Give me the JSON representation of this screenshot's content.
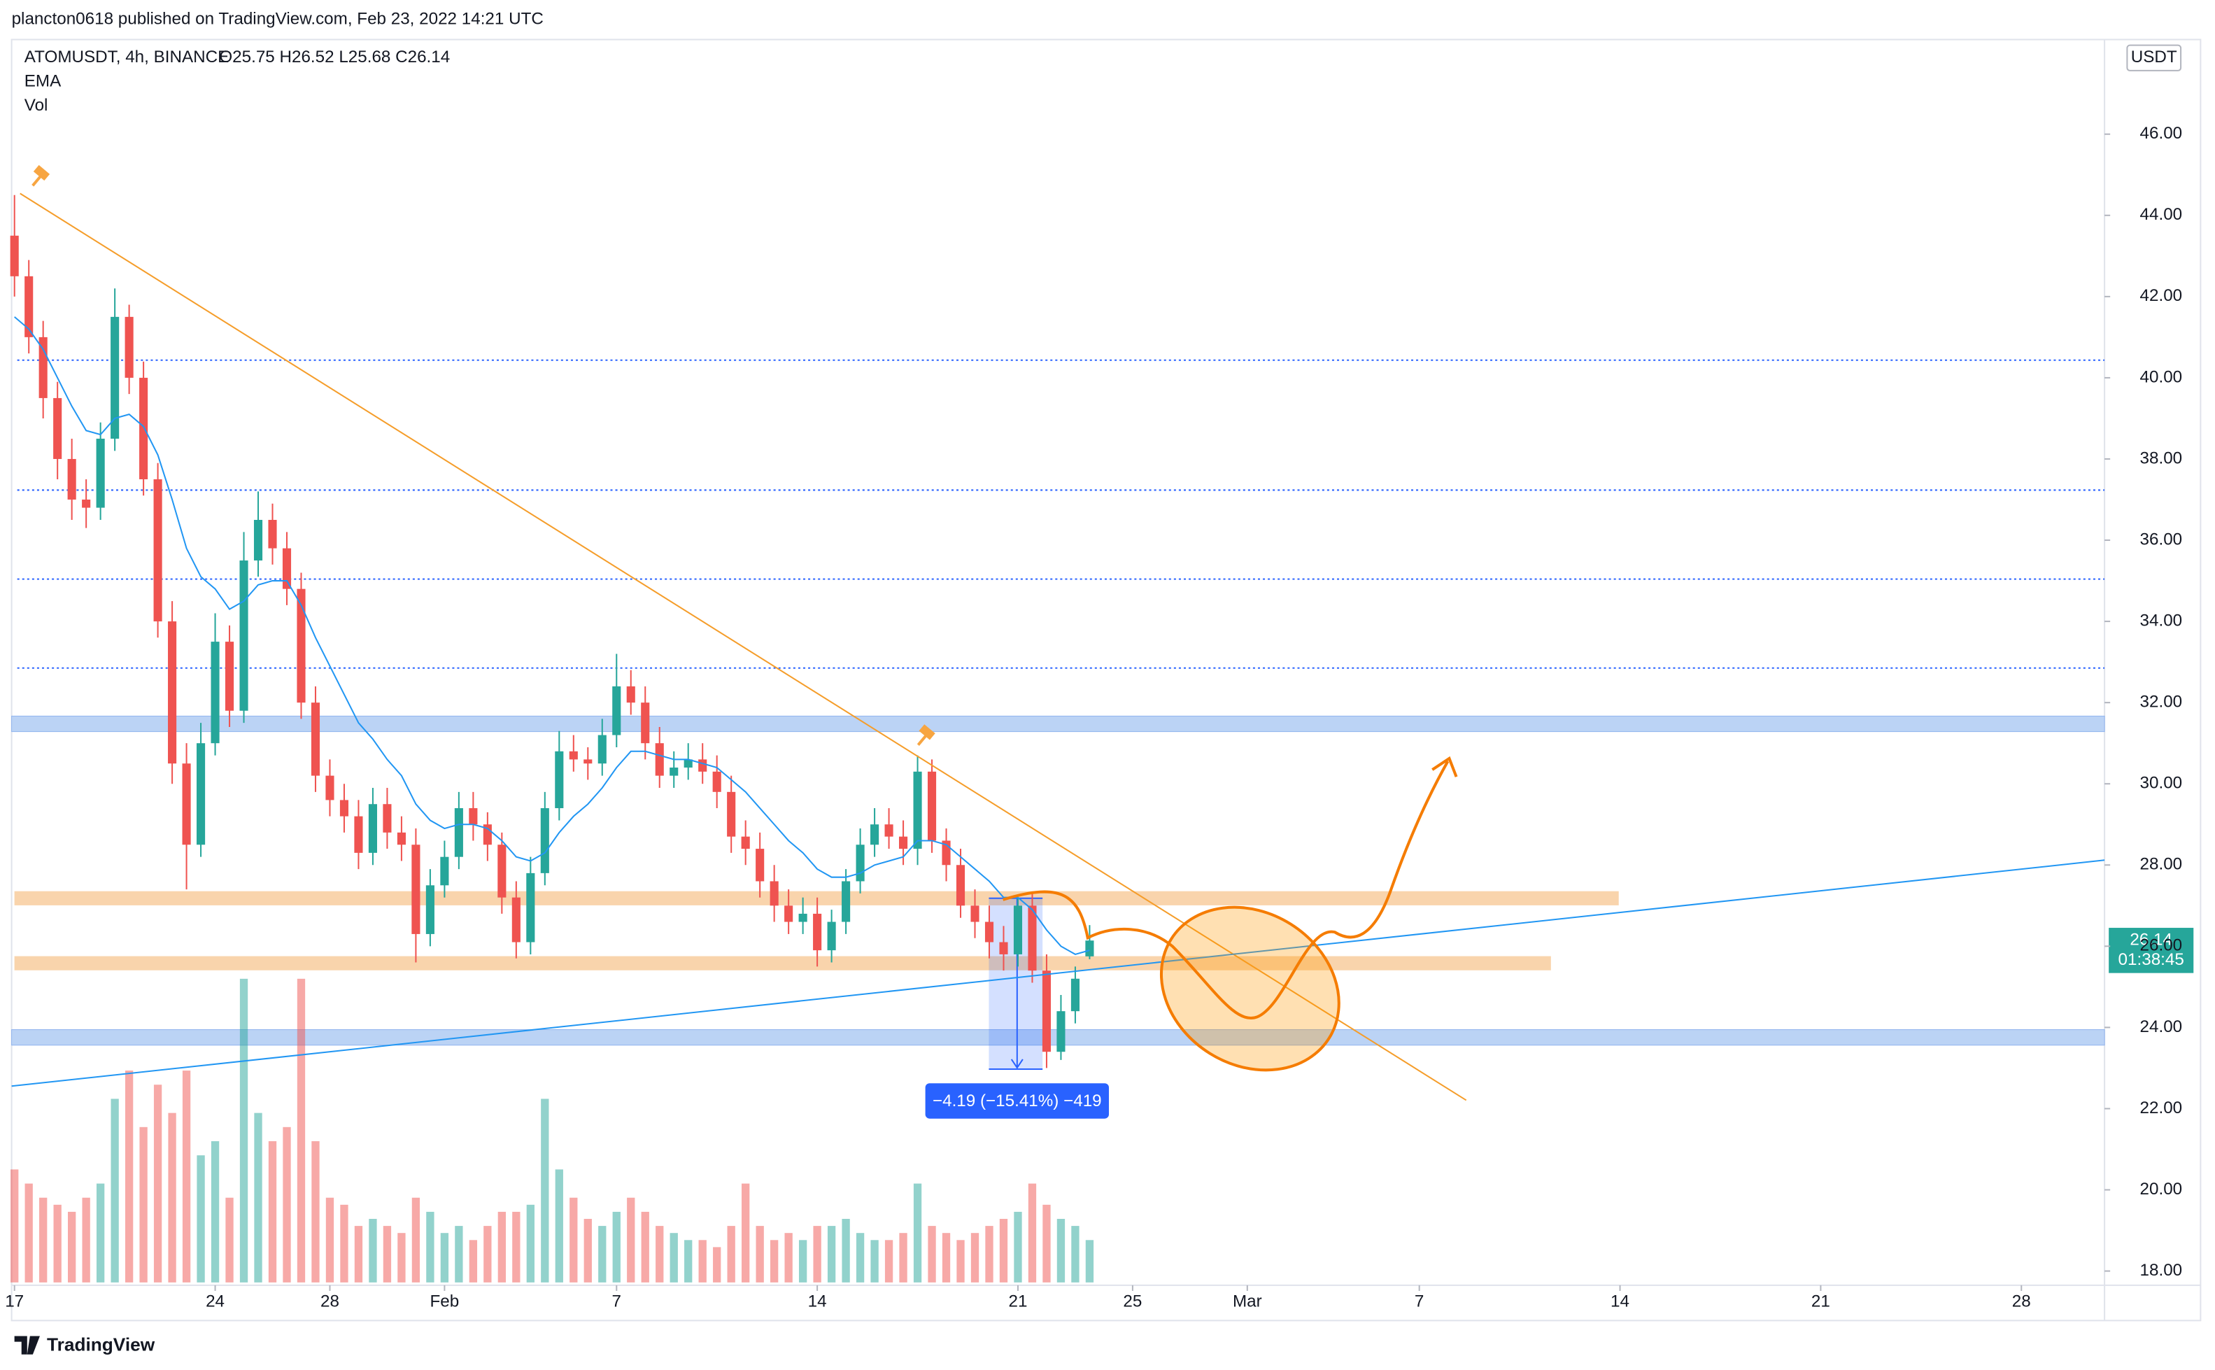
{
  "header": {
    "publisher": "plancton0618 published on TradingView.com, Feb 23, 2022 14:21 UTC"
  },
  "chart_data": {
    "type": "candlestick",
    "title": "ATOMUSDT, 4h, BINANCE",
    "ohlc_label": "O25.75 H26.52 L25.68 C26.14",
    "indicators": [
      "EMA",
      "Vol"
    ],
    "currency": "USDT",
    "countdown": "01:38:45",
    "measure_label": "−4.19 (−15.41%) −419",
    "up_color": "#26a69a",
    "down_color": "#ef5350",
    "ema_color": "#2196f3",
    "open": [
      43.5,
      42.5,
      41.0,
      39.5,
      38.0,
      37.0,
      36.8,
      38.5,
      41.5,
      40.0,
      37.5,
      34.0,
      30.5,
      28.5,
      31.0,
      33.5,
      31.8,
      35.5,
      36.5,
      35.8,
      34.8,
      32.0,
      30.2,
      29.6,
      29.2,
      28.3,
      29.5,
      28.8,
      28.5,
      26.3,
      27.5,
      28.2,
      29.4,
      29.0,
      28.5,
      27.2,
      26.1,
      27.8,
      29.4,
      30.8,
      30.6,
      30.5,
      31.2,
      32.4,
      32.0,
      31.0,
      30.2,
      30.4,
      30.6,
      30.3,
      29.8,
      28.7,
      28.4,
      27.6,
      27.0,
      26.6,
      26.8,
      25.9,
      26.6,
      27.6,
      28.5,
      29.0,
      28.7,
      28.4,
      30.3,
      28.6,
      28.0,
      27.0,
      26.6,
      26.1,
      25.8,
      27.0,
      25.4,
      23.4,
      24.4,
      25.75
    ],
    "high": [
      44.5,
      42.9,
      41.4,
      39.9,
      38.5,
      37.5,
      38.9,
      42.2,
      41.8,
      40.4,
      37.9,
      34.5,
      31.0,
      31.5,
      34.2,
      33.9,
      36.2,
      37.2,
      36.9,
      36.2,
      35.2,
      32.4,
      30.6,
      30.0,
      29.6,
      29.9,
      29.9,
      29.2,
      28.9,
      27.9,
      28.6,
      29.8,
      29.8,
      29.3,
      28.8,
      27.6,
      28.2,
      29.8,
      31.3,
      31.2,
      30.9,
      31.6,
      33.2,
      32.8,
      32.4,
      31.4,
      30.8,
      31.0,
      31.0,
      30.7,
      30.2,
      29.1,
      28.8,
      28.0,
      27.4,
      27.2,
      27.2,
      26.9,
      27.9,
      28.9,
      29.4,
      29.4,
      29.1,
      30.7,
      30.6,
      28.9,
      28.4,
      27.4,
      27.0,
      26.5,
      27.2,
      27.3,
      25.8,
      24.8,
      25.5,
      26.52
    ],
    "low": [
      42.0,
      40.6,
      39.0,
      37.5,
      36.5,
      36.3,
      36.5,
      38.2,
      39.6,
      37.1,
      33.6,
      30.0,
      27.4,
      28.2,
      30.7,
      31.4,
      31.5,
      35.1,
      35.4,
      34.4,
      31.6,
      29.8,
      29.2,
      28.8,
      27.9,
      28.0,
      28.4,
      28.1,
      25.6,
      26.0,
      27.2,
      27.9,
      28.6,
      28.1,
      26.8,
      25.7,
      25.8,
      27.5,
      29.1,
      30.3,
      30.1,
      30.2,
      30.9,
      31.7,
      30.6,
      29.9,
      29.9,
      30.1,
      30.0,
      29.4,
      28.3,
      28.0,
      27.2,
      26.6,
      26.3,
      26.3,
      25.5,
      25.6,
      26.3,
      27.3,
      28.2,
      28.4,
      28.0,
      28.0,
      28.3,
      27.6,
      26.7,
      26.2,
      25.7,
      25.4,
      25.5,
      25.1,
      23.0,
      23.2,
      24.1,
      25.68
    ],
    "close": [
      42.5,
      41.0,
      39.5,
      38.0,
      37.0,
      36.8,
      38.5,
      41.5,
      40.0,
      37.5,
      34.0,
      30.5,
      28.5,
      31.0,
      33.5,
      31.8,
      35.5,
      36.5,
      35.8,
      34.8,
      32.0,
      30.2,
      29.6,
      29.2,
      28.3,
      29.5,
      28.8,
      28.5,
      26.3,
      27.5,
      28.2,
      29.4,
      29.0,
      28.5,
      27.2,
      26.1,
      27.8,
      29.4,
      30.8,
      30.6,
      30.5,
      31.2,
      32.4,
      32.0,
      31.0,
      30.2,
      30.4,
      30.6,
      30.3,
      29.8,
      28.7,
      28.4,
      27.6,
      27.0,
      26.6,
      26.8,
      25.9,
      26.6,
      27.6,
      28.5,
      29.0,
      28.7,
      28.4,
      30.3,
      28.6,
      28.0,
      27.0,
      26.6,
      26.1,
      25.8,
      27.0,
      25.4,
      23.4,
      24.4,
      25.2,
      26.14
    ],
    "ema": [
      41.5,
      41.2,
      40.7,
      40.0,
      39.3,
      38.7,
      38.6,
      39.0,
      39.1,
      38.8,
      38.1,
      37.0,
      35.8,
      35.1,
      34.8,
      34.3,
      34.5,
      34.9,
      35.0,
      35.0,
      34.4,
      33.6,
      32.9,
      32.2,
      31.5,
      31.1,
      30.6,
      30.2,
      29.5,
      29.1,
      28.9,
      29.0,
      29.0,
      28.9,
      28.6,
      28.2,
      28.1,
      28.3,
      28.8,
      29.2,
      29.5,
      29.9,
      30.4,
      30.8,
      30.8,
      30.7,
      30.6,
      30.6,
      30.5,
      30.4,
      30.1,
      29.8,
      29.4,
      29.0,
      28.6,
      28.3,
      27.9,
      27.7,
      27.7,
      27.8,
      28.0,
      28.1,
      28.2,
      28.6,
      28.6,
      28.5,
      28.2,
      27.9,
      27.6,
      27.2,
      27.2,
      26.9,
      26.4,
      26.0,
      25.8,
      25.9
    ],
    "volume": [
      80,
      70,
      60,
      55,
      50,
      60,
      70,
      130,
      150,
      110,
      140,
      120,
      150,
      90,
      100,
      60,
      215,
      120,
      100,
      110,
      215,
      100,
      60,
      55,
      40,
      45,
      40,
      35,
      60,
      50,
      35,
      40,
      30,
      40,
      50,
      50,
      55,
      130,
      80,
      60,
      45,
      40,
      50,
      60,
      50,
      40,
      35,
      30,
      30,
      25,
      40,
      70,
      40,
      30,
      35,
      30,
      40,
      40,
      45,
      35,
      30,
      30,
      35,
      70,
      40,
      35,
      30,
      35,
      40,
      45,
      50,
      70,
      55,
      45,
      40,
      30
    ],
    "xlim": [
      -0.2,
      145.8
    ],
    "xticks": [
      {
        "value": 0,
        "label": "17"
      },
      {
        "value": 14,
        "label": "24"
      },
      {
        "value": 22,
        "label": "28"
      },
      {
        "value": 30,
        "label": "Feb"
      },
      {
        "value": 42,
        "label": "7"
      },
      {
        "value": 56,
        "label": "14"
      },
      {
        "value": 70,
        "label": "21"
      },
      {
        "value": 78,
        "label": "25"
      },
      {
        "value": 86,
        "label": "Mar"
      },
      {
        "value": 98,
        "label": "7"
      },
      {
        "value": 112,
        "label": "14"
      },
      {
        "value": 126,
        "label": "21"
      },
      {
        "value": 140,
        "label": "28"
      }
    ],
    "ylim": [
      17.65,
      48.33
    ],
    "yticks": [
      {
        "value": 18,
        "label": "18.00"
      },
      {
        "value": 20,
        "label": "20.00"
      },
      {
        "value": 22,
        "label": "22.00"
      },
      {
        "value": 24,
        "label": "24.00"
      },
      {
        "value": 26,
        "label": "26.00"
      },
      {
        "value": 28,
        "label": "28.00"
      },
      {
        "value": 30,
        "label": "30.00"
      },
      {
        "value": 32,
        "label": "32.00"
      },
      {
        "value": 34,
        "label": "34.00"
      },
      {
        "value": 36,
        "label": "36.00"
      },
      {
        "value": 38,
        "label": "38.00"
      },
      {
        "value": 40,
        "label": "40.00"
      },
      {
        "value": 42,
        "label": "42.00"
      },
      {
        "value": 44,
        "label": "44.00"
      },
      {
        "value": 46,
        "label": "46.00"
      }
    ]
  },
  "footer": {
    "brand": "TradingView"
  }
}
